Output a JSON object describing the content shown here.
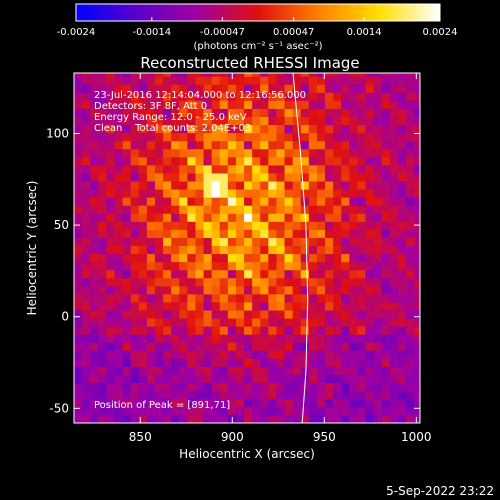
{
  "colorbar": {
    "tick_labels": [
      "-0.0024",
      "-0.0014",
      "-0.00047",
      "0.00047",
      "0.0014",
      "0.0024"
    ],
    "tick_values": [
      -0.0024,
      -0.0014,
      -0.00047,
      0.00047,
      0.0014,
      0.0024
    ],
    "range": [
      -0.0024,
      0.0024
    ],
    "unit_label": "(photons cm⁻² s⁻¹ asec⁻²)",
    "colors": [
      "#0000ff",
      "#5a00c8",
      "#a000a0",
      "#e01010",
      "#ff8000",
      "#ffe000",
      "#ffffff"
    ]
  },
  "chart_data": {
    "type": "heatmap",
    "title": "Reconstructed RHESSI Image",
    "xlabel": "Heliocentric X (arcsec)",
    "ylabel": "Heliocentric Y (arcsec)",
    "xlim": [
      814,
      1002
    ],
    "ylim": [
      -58,
      133
    ],
    "x_ticks": [
      850,
      900,
      950,
      1000
    ],
    "y_ticks": [
      -50,
      0,
      50,
      100
    ],
    "info_lines": [
      "23-Jul-2016 12:14:04.000 to 12:16:56.000",
      "Detectors: 3F 8F, Att 0",
      "Energy Range: 12.0 - 25.0 keV",
      "Clean    Total counts: 2.04E+03"
    ],
    "peak_label": "Position of Peak = [891,71]",
    "peak": {
      "x": 891,
      "y": 71
    },
    "limb_points": [
      [
        933,
        133
      ],
      [
        937,
        90
      ],
      [
        940,
        50
      ],
      [
        941,
        10
      ],
      [
        940,
        -30
      ],
      [
        938,
        -58
      ]
    ]
  },
  "timestamp": "5-Sep-2022 23:22"
}
